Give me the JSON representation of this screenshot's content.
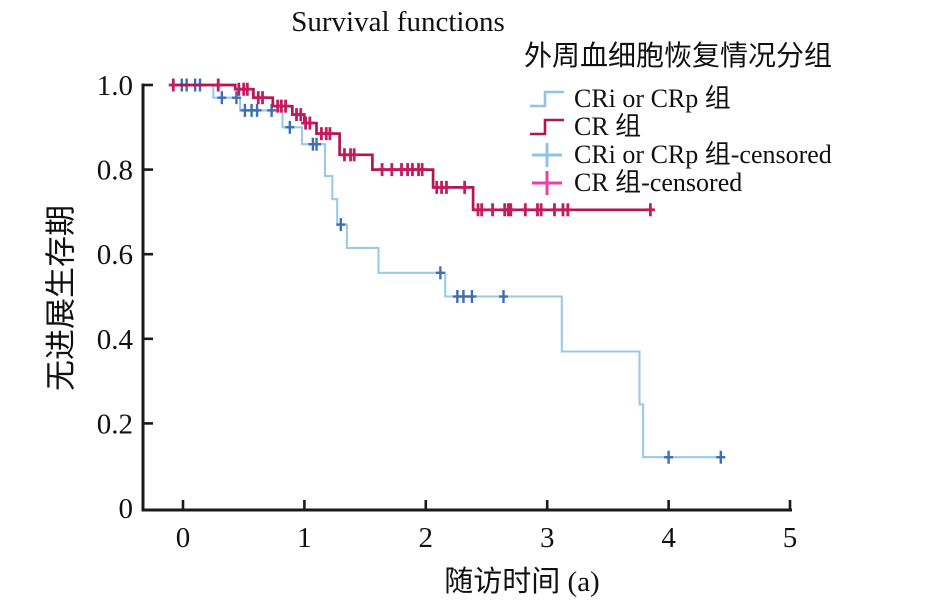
{
  "chart_data": {
    "type": "line",
    "subtype": "kaplan-meier-step-survival",
    "title": "Survival functions",
    "legend_title": "外周血细胞恢复情况分组",
    "xlabel": "随访时间 (a)",
    "ylabel": "无进展生存期",
    "xlim": [
      -0.33,
      5.0
    ],
    "ylim": [
      0,
      1.0
    ],
    "grid": "off",
    "legend_position": "top-right",
    "axis_color": "#1a1a1a",
    "x_ticks": [
      {
        "v": 0,
        "label": "0"
      },
      {
        "v": 1,
        "label": "1"
      },
      {
        "v": 2,
        "label": "2"
      },
      {
        "v": 3,
        "label": "3"
      },
      {
        "v": 4,
        "label": "4"
      },
      {
        "v": 5,
        "label": "5"
      }
    ],
    "y_ticks": [
      {
        "v": 0,
        "label": "0"
      },
      {
        "v": 0.2,
        "label": "0.2"
      },
      {
        "v": 0.4,
        "label": "0.4"
      },
      {
        "v": 0.6,
        "label": "0.6"
      },
      {
        "v": 0.8,
        "label": "0.8"
      },
      {
        "v": 1.0,
        "label": "1.0"
      }
    ],
    "legend": [
      {
        "label": "CRi or CRp 组",
        "symbol": "step-line",
        "color": "#8fc3e8"
      },
      {
        "label": "CR 组",
        "symbol": "step-line",
        "color": "#b2164f"
      },
      {
        "label": "CRi or CRp 组-censored",
        "symbol": "plus",
        "color": "#8fc3e8"
      },
      {
        "label": "CR 组-censored",
        "symbol": "plus",
        "color": "#ee3fa4"
      }
    ],
    "series": [
      {
        "name": "CRi or CRp 组",
        "color": "#9cc9e8",
        "censor_color": "#3e6db5",
        "line_width": 2.1,
        "censor_width": 2.4,
        "steps": [
          [
            -0.1,
            1.0
          ],
          [
            0.25,
            0.97
          ],
          [
            0.47,
            0.94
          ],
          [
            0.82,
            0.9
          ],
          [
            0.98,
            0.86
          ],
          [
            1.17,
            0.785
          ],
          [
            1.23,
            0.73
          ],
          [
            1.27,
            0.67
          ],
          [
            1.35,
            0.615
          ],
          [
            1.61,
            0.556
          ],
          [
            2.16,
            0.5
          ],
          [
            3.12,
            0.37
          ],
          [
            3.76,
            0.245
          ],
          [
            3.79,
            0.12
          ]
        ],
        "end_x": 4.43,
        "censored": [
          [
            -0.01,
            1.0
          ],
          [
            0.03,
            1.0
          ],
          [
            0.1,
            1.0
          ],
          [
            0.14,
            1.0
          ],
          [
            0.32,
            0.97
          ],
          [
            0.44,
            0.97
          ],
          [
            0.51,
            0.94
          ],
          [
            0.565,
            0.94
          ],
          [
            0.61,
            0.94
          ],
          [
            0.73,
            0.94
          ],
          [
            0.88,
            0.9
          ],
          [
            1.07,
            0.86
          ],
          [
            1.1,
            0.86
          ],
          [
            1.3,
            0.67
          ],
          [
            2.12,
            0.556
          ],
          [
            2.26,
            0.5
          ],
          [
            2.31,
            0.5
          ],
          [
            2.38,
            0.5
          ],
          [
            2.64,
            0.5
          ],
          [
            4.0,
            0.12
          ],
          [
            4.43,
            0.12
          ]
        ]
      },
      {
        "name": "CR 组",
        "color": "#b2164f",
        "censor_color": "#c21b5f",
        "line_width": 2.7,
        "censor_width": 2.8,
        "steps": [
          [
            -0.1,
            1.0
          ],
          [
            0.43,
            0.99
          ],
          [
            0.58,
            0.97
          ],
          [
            0.74,
            0.95
          ],
          [
            0.9,
            0.93
          ],
          [
            1.0,
            0.91
          ],
          [
            1.1,
            0.885
          ],
          [
            1.29,
            0.835
          ],
          [
            1.56,
            0.8
          ],
          [
            2.06,
            0.758
          ],
          [
            2.39,
            0.705
          ]
        ],
        "end_x": 3.86,
        "censored": [
          [
            -0.08,
            1.0
          ],
          [
            0.29,
            1.0
          ],
          [
            0.46,
            0.99
          ],
          [
            0.5,
            0.99
          ],
          [
            0.53,
            0.99
          ],
          [
            0.62,
            0.97
          ],
          [
            0.655,
            0.97
          ],
          [
            0.78,
            0.95
          ],
          [
            0.81,
            0.95
          ],
          [
            0.845,
            0.95
          ],
          [
            0.935,
            0.93
          ],
          [
            0.97,
            0.93
          ],
          [
            1.01,
            0.91
          ],
          [
            1.045,
            0.91
          ],
          [
            1.14,
            0.885
          ],
          [
            1.18,
            0.885
          ],
          [
            1.21,
            0.885
          ],
          [
            1.33,
            0.835
          ],
          [
            1.38,
            0.835
          ],
          [
            1.41,
            0.835
          ],
          [
            1.64,
            0.8
          ],
          [
            1.72,
            0.8
          ],
          [
            1.8,
            0.8
          ],
          [
            1.85,
            0.8
          ],
          [
            1.89,
            0.8
          ],
          [
            1.94,
            0.8
          ],
          [
            1.97,
            0.8
          ],
          [
            2.09,
            0.758
          ],
          [
            2.13,
            0.758
          ],
          [
            2.17,
            0.758
          ],
          [
            2.32,
            0.758
          ],
          [
            2.43,
            0.705
          ],
          [
            2.46,
            0.705
          ],
          [
            2.55,
            0.705
          ],
          [
            2.65,
            0.705
          ],
          [
            2.68,
            0.705
          ],
          [
            2.7,
            0.705
          ],
          [
            2.82,
            0.705
          ],
          [
            2.92,
            0.705
          ],
          [
            2.95,
            0.705
          ],
          [
            3.06,
            0.705
          ],
          [
            3.13,
            0.705
          ],
          [
            3.17,
            0.705
          ],
          [
            3.85,
            0.705
          ]
        ]
      }
    ]
  }
}
